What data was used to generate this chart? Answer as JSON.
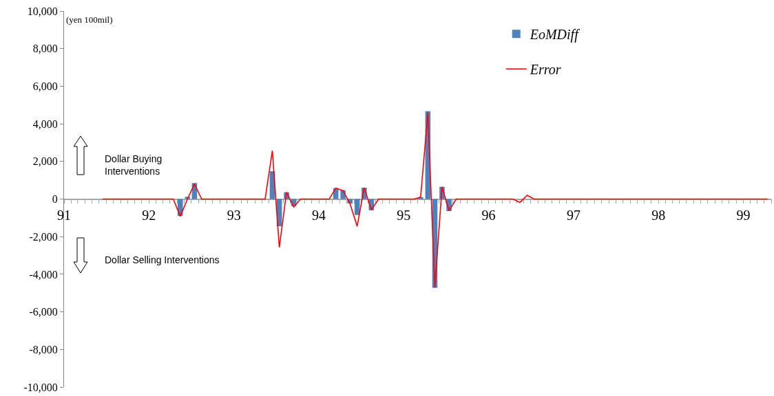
{
  "chart_data": {
    "type": "bar",
    "x": [
      "1991-06-15",
      "1991-07-15",
      "1991-08-15",
      "1991-09-15",
      "1991-10-15",
      "1991-11-15",
      "1991-12-15",
      "1992-01-15",
      "1992-02-15",
      "1992-03-15",
      "1992-04-15",
      "1992-05-15",
      "1992-06-15",
      "1992-07-15",
      "1992-08-15",
      "1992-09-15",
      "1992-10-15",
      "1992-11-15",
      "1992-12-15",
      "1993-01-15",
      "1993-02-15",
      "1993-03-15",
      "1993-04-15",
      "1993-05-15",
      "1993-06-15",
      "1993-07-15",
      "1993-08-15",
      "1993-09-15",
      "1993-10-15",
      "1993-11-15",
      "1993-12-15",
      "1994-01-15",
      "1994-02-15",
      "1994-03-15",
      "1994-04-15",
      "1994-05-15",
      "1994-06-15",
      "1994-07-15",
      "1994-08-15",
      "1994-09-15",
      "1994-10-15",
      "1994-11-15",
      "1994-12-15",
      "1995-01-15",
      "1995-02-15",
      "1995-03-15",
      "1995-04-15",
      "1995-05-15",
      "1995-06-15",
      "1995-07-15",
      "1995-08-15",
      "1995-09-15",
      "1995-10-15",
      "1995-11-15",
      "1995-12-15",
      "1996-01-15",
      "1996-02-15",
      "1996-03-15",
      "1996-04-15",
      "1996-05-15",
      "1996-06-15",
      "1996-07-15",
      "1996-08-15",
      "1996-09-15",
      "1996-10-15",
      "1996-11-15",
      "1996-12-15",
      "1997-01-15",
      "1997-02-15",
      "1997-03-15",
      "1997-04-15",
      "1997-05-15",
      "1997-06-15",
      "1997-07-15",
      "1997-08-15",
      "1997-09-15",
      "1997-10-15",
      "1997-11-15",
      "1997-12-15",
      "1998-01-15",
      "1998-02-15",
      "1998-03-15",
      "1998-04-15",
      "1998-05-15",
      "1998-06-15",
      "1998-07-15",
      "1998-08-15",
      "1998-09-15",
      "1998-10-15",
      "1998-11-15",
      "1998-12-15",
      "1999-01-15",
      "1999-02-15",
      "1999-03-15",
      "1999-04-15"
    ],
    "series": [
      {
        "name": "EoMDiff",
        "color": "#4f81bd",
        "values": [
          null,
          null,
          null,
          null,
          null,
          null,
          null,
          null,
          null,
          null,
          null,
          -900,
          120,
          850,
          null,
          null,
          null,
          null,
          null,
          null,
          null,
          null,
          null,
          null,
          1480,
          -1450,
          360,
          -380,
          null,
          null,
          null,
          null,
          null,
          580,
          470,
          -240,
          -850,
          600,
          -600,
          null,
          null,
          null,
          null,
          null,
          null,
          100,
          4670,
          -4730,
          650,
          -640,
          null,
          null,
          null,
          null,
          null,
          null,
          null,
          null,
          null,
          null,
          null,
          null,
          null,
          null,
          null,
          null,
          null,
          null,
          null,
          null,
          null,
          null,
          null,
          null,
          null,
          null,
          null,
          null,
          null,
          null,
          null,
          null,
          null,
          null,
          null,
          null,
          null,
          null,
          null,
          null,
          null,
          null,
          null,
          null,
          null
        ]
      },
      {
        "name": "Error",
        "type": "line",
        "color": "#ff0000",
        "values": [
          0,
          0,
          0,
          0,
          0,
          0,
          0,
          0,
          0,
          0,
          0,
          -920,
          0,
          800,
          0,
          0,
          0,
          0,
          0,
          0,
          0,
          0,
          0,
          0,
          2570,
          -2570,
          360,
          -420,
          0,
          0,
          0,
          0,
          0,
          580,
          450,
          -240,
          -1450,
          600,
          -580,
          0,
          0,
          0,
          0,
          0,
          0,
          100,
          4600,
          -4700,
          650,
          -620,
          0,
          0,
          0,
          0,
          0,
          0,
          0,
          0,
          0,
          -180,
          200,
          0,
          0,
          0,
          0,
          0,
          0,
          0,
          0,
          0,
          0,
          0,
          0,
          0,
          0,
          0,
          0,
          0,
          0,
          0,
          0,
          0,
          0,
          0,
          0,
          0,
          0,
          0,
          0,
          0,
          0,
          0,
          0,
          0,
          0
        ]
      }
    ],
    "xlim": [
      "1991-01",
      "1999-05"
    ],
    "xticks": [
      {
        "value": "1991-01",
        "label": "91"
      },
      {
        "value": "1991-02",
        "label": null
      },
      {
        "value": "1991-03",
        "label": null
      },
      {
        "value": "1991-04",
        "label": null
      },
      {
        "value": "1991-05",
        "label": null
      },
      {
        "value": "1991-06",
        "label": null
      },
      {
        "value": "1991-07",
        "label": null
      },
      {
        "value": "1991-08",
        "label": null
      },
      {
        "value": "1991-09",
        "label": null
      },
      {
        "value": "1991-10",
        "label": null
      },
      {
        "value": "1991-11",
        "label": null
      },
      {
        "value": "1991-12",
        "label": null
      },
      {
        "value": "1992-01",
        "label": "92"
      },
      {
        "value": "1992-02",
        "label": null
      },
      {
        "value": "1992-03",
        "label": null
      },
      {
        "value": "1992-04",
        "label": null
      },
      {
        "value": "1992-05",
        "label": null
      },
      {
        "value": "1992-06",
        "label": null
      },
      {
        "value": "1992-07",
        "label": null
      },
      {
        "value": "1992-08",
        "label": null
      },
      {
        "value": "1992-09",
        "label": null
      },
      {
        "value": "1992-10",
        "label": null
      },
      {
        "value": "1992-11",
        "label": null
      },
      {
        "value": "1992-12",
        "label": null
      },
      {
        "value": "1993-01",
        "label": "93"
      },
      {
        "value": "1993-02",
        "label": null
      },
      {
        "value": "1993-03",
        "label": null
      },
      {
        "value": "1993-04",
        "label": null
      },
      {
        "value": "1993-05",
        "label": null
      },
      {
        "value": "1993-06",
        "label": null
      },
      {
        "value": "1993-07",
        "label": null
      },
      {
        "value": "1993-08",
        "label": null
      },
      {
        "value": "1993-09",
        "label": null
      },
      {
        "value": "1993-10",
        "label": null
      },
      {
        "value": "1993-11",
        "label": null
      },
      {
        "value": "1993-12",
        "label": null
      },
      {
        "value": "1994-01",
        "label": "94"
      },
      {
        "value": "1994-02",
        "label": null
      },
      {
        "value": "1994-03",
        "label": null
      },
      {
        "value": "1994-04",
        "label": null
      },
      {
        "value": "1994-05",
        "label": null
      },
      {
        "value": "1994-06",
        "label": null
      },
      {
        "value": "1994-07",
        "label": null
      },
      {
        "value": "1994-08",
        "label": null
      },
      {
        "value": "1994-09",
        "label": null
      },
      {
        "value": "1994-10",
        "label": null
      },
      {
        "value": "1994-11",
        "label": null
      },
      {
        "value": "1994-12",
        "label": null
      },
      {
        "value": "1995-01",
        "label": "95"
      },
      {
        "value": "1995-02",
        "label": null
      },
      {
        "value": "1995-03",
        "label": null
      },
      {
        "value": "1995-04",
        "label": null
      },
      {
        "value": "1995-05",
        "label": null
      },
      {
        "value": "1995-06",
        "label": null
      },
      {
        "value": "1995-07",
        "label": null
      },
      {
        "value": "1995-08",
        "label": null
      },
      {
        "value": "1995-09",
        "label": null
      },
      {
        "value": "1995-10",
        "label": null
      },
      {
        "value": "1995-11",
        "label": null
      },
      {
        "value": "1995-12",
        "label": null
      },
      {
        "value": "1996-01",
        "label": "96"
      },
      {
        "value": "1996-02",
        "label": null
      },
      {
        "value": "1996-03",
        "label": null
      },
      {
        "value": "1996-04",
        "label": null
      },
      {
        "value": "1996-05",
        "label": null
      },
      {
        "value": "1996-06",
        "label": null
      },
      {
        "value": "1996-07",
        "label": null
      },
      {
        "value": "1996-08",
        "label": null
      },
      {
        "value": "1996-09",
        "label": null
      },
      {
        "value": "1996-10",
        "label": null
      },
      {
        "value": "1996-11",
        "label": null
      },
      {
        "value": "1996-12",
        "label": null
      },
      {
        "value": "1997-01",
        "label": "97"
      },
      {
        "value": "1997-02",
        "label": null
      },
      {
        "value": "1997-03",
        "label": null
      },
      {
        "value": "1997-04",
        "label": null
      },
      {
        "value": "1997-05",
        "label": null
      },
      {
        "value": "1997-06",
        "label": null
      },
      {
        "value": "1997-07",
        "label": null
      },
      {
        "value": "1997-08",
        "label": null
      },
      {
        "value": "1997-09",
        "label": null
      },
      {
        "value": "1997-10",
        "label": null
      },
      {
        "value": "1997-11",
        "label": null
      },
      {
        "value": "1997-12",
        "label": null
      },
      {
        "value": "1998-01",
        "label": "98"
      },
      {
        "value": "1998-02",
        "label": null
      },
      {
        "value": "1998-03",
        "label": null
      },
      {
        "value": "1998-04",
        "label": null
      },
      {
        "value": "1998-05",
        "label": null
      },
      {
        "value": "1998-06",
        "label": null
      },
      {
        "value": "1998-07",
        "label": null
      },
      {
        "value": "1998-08",
        "label": null
      },
      {
        "value": "1998-09",
        "label": null
      },
      {
        "value": "1998-10",
        "label": null
      },
      {
        "value": "1998-11",
        "label": null
      },
      {
        "value": "1998-12",
        "label": null
      },
      {
        "value": "1999-01",
        "label": "99"
      },
      {
        "value": "1999-02",
        "label": null
      },
      {
        "value": "1999-03",
        "label": null
      },
      {
        "value": "1999-04",
        "label": null
      },
      {
        "value": "1999-05",
        "label": null
      }
    ],
    "ylim": [
      -10000,
      10000
    ],
    "yticks": [
      {
        "value": -10000,
        "label": "-10,000"
      },
      {
        "value": -8000,
        "label": "-8,000"
      },
      {
        "value": -6000,
        "label": "-6,000"
      },
      {
        "value": -4000,
        "label": "-4,000"
      },
      {
        "value": -2000,
        "label": "-2,000"
      },
      0,
      {
        "value": 2000,
        "label": "2,000"
      },
      {
        "value": 4000,
        "label": "4,000"
      },
      {
        "value": 6000,
        "label": "6,000"
      },
      {
        "value": 8000,
        "label": "8,000"
      },
      {
        "value": 10000,
        "label": "10,000"
      }
    ],
    "annotations": [
      "(yen 100mil)",
      "Dollar Buying\nInterventions",
      "Dollar Selling Interventions"
    ],
    "legend": "top right",
    "marker": "none"
  }
}
